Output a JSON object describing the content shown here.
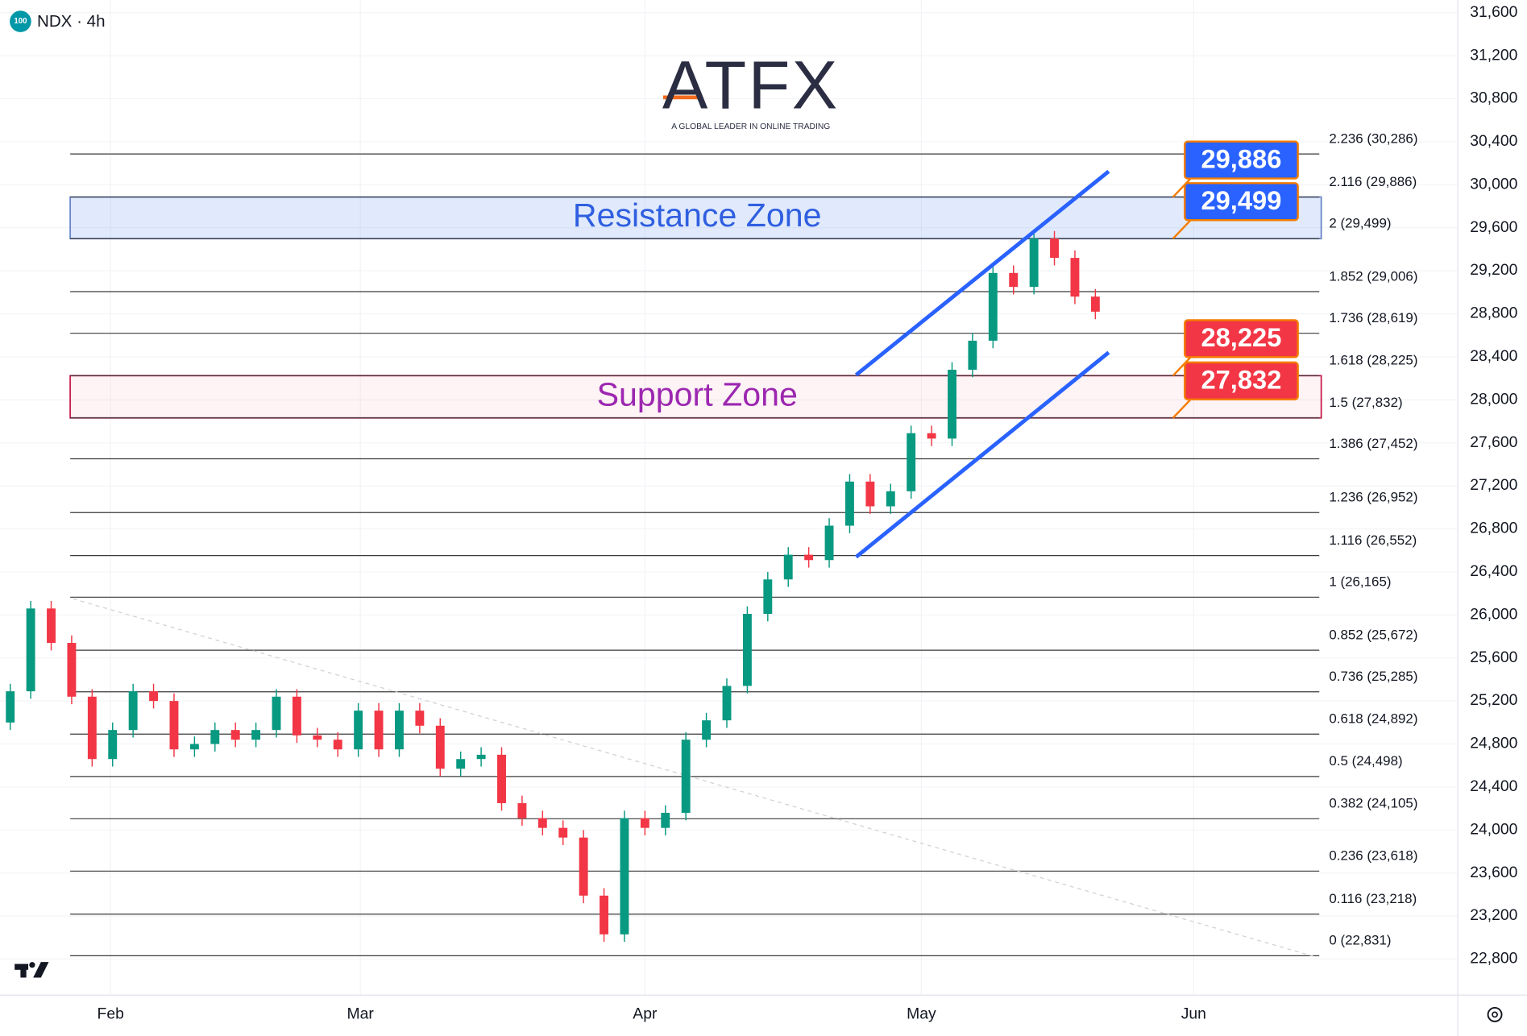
{
  "header": {
    "badge": "100",
    "symbol": "NDX · 4h"
  },
  "logo": {
    "name": "ATFX",
    "tagline": "A GLOBAL LEADER IN ONLINE TRADING"
  },
  "chart_data": {
    "type": "candlestick",
    "open": [
      25000,
      25290,
      26060,
      25740,
      25240,
      24660,
      24930,
      25290,
      25200,
      24750,
      24800,
      24930,
      24840,
      24930,
      25240,
      24880,
      24840,
      24750,
      25110,
      24750,
      25110,
      24970,
      24570,
      24660,
      24700,
      24250,
      24110,
      24020,
      23930,
      23390,
      23030,
      24110,
      24020,
      24160,
      24840,
      25020,
      25340,
      26010,
      26330,
      26560,
      26510,
      26830,
      27240,
      27010,
      27150,
      27690,
      27640,
      28280,
      28550,
      29180,
      29050,
      29500,
      29320,
      28960
    ],
    "high": [
      25360,
      26130,
      26130,
      25810,
      25310,
      25000,
      25360,
      25360,
      25270,
      24870,
      25000,
      25000,
      25000,
      25310,
      25310,
      24950,
      24910,
      25180,
      25180,
      25180,
      25180,
      25040,
      24730,
      24770,
      24770,
      24320,
      24180,
      24090,
      24000,
      23460,
      24180,
      24180,
      24230,
      24910,
      25090,
      25410,
      26080,
      26400,
      26630,
      26630,
      26900,
      27310,
      27310,
      27220,
      27760,
      27760,
      28350,
      28620,
      29250,
      29250,
      29570,
      29570,
      29390,
      29030
    ],
    "low": [
      24930,
      25220,
      25670,
      25170,
      24590,
      24590,
      24860,
      25130,
      24680,
      24680,
      24730,
      24770,
      24770,
      24860,
      24810,
      24770,
      24680,
      24680,
      24680,
      24680,
      24900,
      24500,
      24500,
      24590,
      24180,
      24040,
      23950,
      23860,
      23320,
      22960,
      22960,
      23950,
      23950,
      24090,
      24770,
      24950,
      25270,
      25940,
      26260,
      26440,
      26440,
      26760,
      26940,
      26940,
      27080,
      27570,
      27570,
      28210,
      28480,
      28980,
      28980,
      29250,
      28890,
      28750
    ],
    "close": [
      25290,
      26060,
      25740,
      25240,
      24660,
      24930,
      25290,
      25200,
      24750,
      24800,
      24930,
      24840,
      24930,
      25240,
      24880,
      24840,
      24750,
      25110,
      24750,
      25110,
      24970,
      24570,
      24660,
      24700,
      24250,
      24110,
      24020,
      23930,
      23390,
      23030,
      24110,
      24020,
      24160,
      24840,
      25020,
      25340,
      26010,
      26330,
      26560,
      26510,
      26830,
      27240,
      27010,
      27150,
      27690,
      27640,
      28280,
      28550,
      29180,
      29050,
      29500,
      29320,
      28960,
      28820
    ],
    "up_color": "#089981",
    "down_color": "#f23645",
    "xlim": [
      -0.5,
      70.7
    ],
    "xticks": [
      {
        "value": 4.9,
        "label": "Feb"
      },
      {
        "value": 17.1,
        "label": "Mar"
      },
      {
        "value": 31.0,
        "label": "Apr"
      },
      {
        "value": 44.5,
        "label": "May"
      },
      {
        "value": 57.8,
        "label": "Jun"
      }
    ],
    "ylim": [
      22465,
      31718
    ],
    "yticks": [
      {
        "value": 22800,
        "label": "22,800"
      },
      {
        "value": 23200,
        "label": "23,200"
      },
      {
        "value": 23600,
        "label": "23,600"
      },
      {
        "value": 24000,
        "label": "24,000"
      },
      {
        "value": 24400,
        "label": "24,400"
      },
      {
        "value": 24800,
        "label": "24,800"
      },
      {
        "value": 25200,
        "label": "25,200"
      },
      {
        "value": 25600,
        "label": "25,600"
      },
      {
        "value": 26000,
        "label": "26,000"
      },
      {
        "value": 26400,
        "label": "26,400"
      },
      {
        "value": 26800,
        "label": "26,800"
      },
      {
        "value": 27200,
        "label": "27,200"
      },
      {
        "value": 27600,
        "label": "27,600"
      },
      {
        "value": 28000,
        "label": "28,000"
      },
      {
        "value": 28400,
        "label": "28,400"
      },
      {
        "value": 28800,
        "label": "28,800"
      },
      {
        "value": 29200,
        "label": "29,200"
      },
      {
        "value": 29600,
        "label": "29,600"
      },
      {
        "value": 30000,
        "label": "30,000"
      },
      {
        "value": 30400,
        "label": "30,400"
      },
      {
        "value": 30800,
        "label": "30,800"
      },
      {
        "value": 31200,
        "label": "31,200"
      },
      {
        "value": 31600,
        "label": "31,600"
      }
    ],
    "grid": true,
    "fib_levels": [
      {
        "value": 30286,
        "label": "2.236 (30,286)"
      },
      {
        "value": 29886,
        "label": "2.116 (29,886)"
      },
      {
        "value": 29499,
        "label": "2 (29,499)"
      },
      {
        "value": 29006,
        "label": "1.852 (29,006)"
      },
      {
        "value": 28619,
        "label": "1.736 (28,619)"
      },
      {
        "value": 28225,
        "label": "1.618 (28,225)"
      },
      {
        "value": 27832,
        "label": "1.5 (27,832)"
      },
      {
        "value": 27452,
        "label": "1.386 (27,452)"
      },
      {
        "value": 26952,
        "label": "1.236 (26,952)"
      },
      {
        "value": 26552,
        "label": "1.116 (26,552)"
      },
      {
        "value": 26165,
        "label": "1 (26,165)"
      },
      {
        "value": 25672,
        "label": "0.852 (25,672)"
      },
      {
        "value": 25285,
        "label": "0.736 (25,285)"
      },
      {
        "value": 24892,
        "label": "0.618 (24,892)"
      },
      {
        "value": 24498,
        "label": "0.5 (24,498)"
      },
      {
        "value": 24105,
        "label": "0.382 (24,105)"
      },
      {
        "value": 23618,
        "label": "0.236 (23,618)"
      },
      {
        "value": 23218,
        "label": "0.116 (23,218)"
      },
      {
        "value": 22831,
        "label": "0 (22,831)"
      }
    ],
    "zones": [
      {
        "name": "Resistance Zone",
        "low": 29499,
        "high": 29886,
        "fill": "rgba(120,160,240,0.22)",
        "border": "#6a86c8",
        "text_color": "#2f5fe0"
      },
      {
        "name": "Support Zone",
        "low": 27832,
        "high": 28225,
        "fill": "rgba(250,200,210,0.22)",
        "border": "#c8204e",
        "text_color": "#9c27b0"
      }
    ],
    "price_tags": [
      {
        "value": 29886,
        "label": "29,886",
        "color": "#2962ff"
      },
      {
        "value": 29499,
        "label": "29,499",
        "color": "#2962ff"
      },
      {
        "value": 28225,
        "label": "28,225",
        "color": "#f23645"
      },
      {
        "value": 27832,
        "label": "27,832",
        "color": "#f23645"
      }
    ]
  }
}
